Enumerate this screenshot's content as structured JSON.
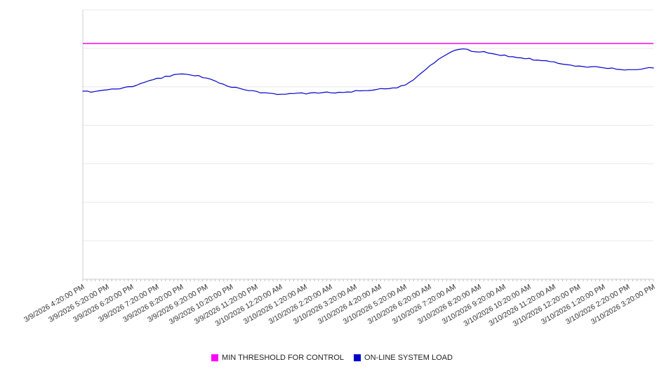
{
  "chart_data": {
    "type": "line",
    "title": "",
    "xlabel": "",
    "ylabel": "",
    "ylim": [
      0,
      100
    ],
    "grid": true,
    "gridline_count": 8,
    "legend_position": "bottom",
    "categories": [
      "3/9/2026 4:20:00 PM",
      "3/9/2026 5:20:00 PM",
      "3/9/2026 6:20:00 PM",
      "3/9/2026 7:20:00 PM",
      "3/9/2026 8:20:00 PM",
      "3/9/2026 9:20:00 PM",
      "3/9/2026 10:20:00 PM",
      "3/9/2026 11:20:00 PM",
      "3/10/2026 12:20:00 AM",
      "3/10/2026 1:20:00 AM",
      "3/10/2026 2:20:00 AM",
      "3/10/2026 3:20:00 AM",
      "3/10/2026 4:20:00 AM",
      "3/10/2026 5:20:00 AM",
      "3/10/2026 6:20:00 AM",
      "3/10/2026 7:20:00 AM",
      "3/10/2026 8:20:00 AM",
      "3/10/2026 9:20:00 AM",
      "3/10/2026 10:20:00 AM",
      "3/10/2026 11:20:00 AM",
      "3/10/2026 12:20:00 PM",
      "3/10/2026 1:20:00 PM",
      "3/10/2026 2:20:00 PM",
      "3/10/2026 3:20:00 PM"
    ],
    "series": [
      {
        "name": "MIN THRESHOLD FOR CONTROL",
        "type": "threshold",
        "color": "#ff00ff",
        "value": 87.5
      },
      {
        "name": "ON-LINE SYSTEM LOAD",
        "type": "line",
        "color": "#0000cd",
        "values": [
          69.5,
          70.3,
          71.6,
          74.5,
          76.0,
          74.7,
          71.4,
          69.5,
          68.8,
          69.0,
          69.3,
          69.8,
          70.8,
          72.1,
          79.4,
          84.9,
          84.4,
          83.1,
          81.8,
          80.5,
          79.2,
          78.6,
          77.6,
          78.4
        ]
      }
    ]
  },
  "legend": {
    "items": [
      {
        "label": "MIN THRESHOLD FOR CONTROL",
        "color": "#ff00ff"
      },
      {
        "label": "ON-LINE SYSTEM LOAD",
        "color": "#0000cd"
      }
    ]
  }
}
